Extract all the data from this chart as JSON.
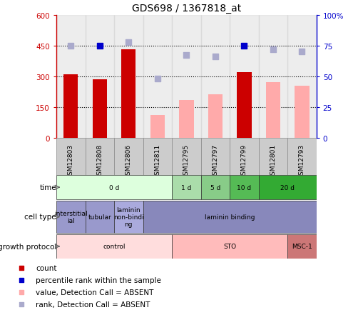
{
  "title": "GDS698 / 1367818_at",
  "samples": [
    "GSM12803",
    "GSM12808",
    "GSM12806",
    "GSM12811",
    "GSM12795",
    "GSM12797",
    "GSM12799",
    "GSM12801",
    "GSM12793"
  ],
  "count_values": [
    310,
    285,
    430,
    null,
    null,
    null,
    320,
    null,
    null
  ],
  "count_absent_values": [
    null,
    null,
    null,
    110,
    185,
    210,
    null,
    270,
    255
  ],
  "percentile_present": [
    null,
    75,
    null,
    null,
    null,
    null,
    75,
    null,
    null
  ],
  "percentile_absent": [
    75,
    null,
    78,
    48,
    67,
    66,
    null,
    72,
    70
  ],
  "ylim_left": [
    0,
    600
  ],
  "ylim_right": [
    0,
    100
  ],
  "yticks_left": [
    0,
    150,
    300,
    450,
    600
  ],
  "yticks_right": [
    0,
    25,
    50,
    75,
    100
  ],
  "ytick_labels_left": [
    "0",
    "150",
    "300",
    "450",
    "600"
  ],
  "ytick_labels_right": [
    "0",
    "25",
    "50",
    "75",
    "100%"
  ],
  "color_count": "#cc0000",
  "color_count_absent": "#ffaaaa",
  "color_percentile_present": "#0000cc",
  "color_percentile_absent": "#aaaacc",
  "bar_width": 0.5,
  "dot_size": 30,
  "time_groups": [
    {
      "label": "0 d",
      "start": 0,
      "end": 4,
      "color": "#ddffdd"
    },
    {
      "label": "1 d",
      "start": 4,
      "end": 5,
      "color": "#aaddaa"
    },
    {
      "label": "5 d",
      "start": 5,
      "end": 6,
      "color": "#88cc88"
    },
    {
      "label": "10 d",
      "start": 6,
      "end": 7,
      "color": "#55bb55"
    },
    {
      "label": "20 d",
      "start": 7,
      "end": 9,
      "color": "#33aa33"
    }
  ],
  "cell_type_groups": [
    {
      "label": "interstitial\nial",
      "start": 0,
      "end": 1,
      "color": "#9999cc"
    },
    {
      "label": "tubular",
      "start": 1,
      "end": 2,
      "color": "#9999cc"
    },
    {
      "label": "laminin\nnon-bindi\nng",
      "start": 2,
      "end": 3,
      "color": "#aaaadd"
    },
    {
      "label": "laminin binding",
      "start": 3,
      "end": 9,
      "color": "#8888bb"
    }
  ],
  "growth_protocol_groups": [
    {
      "label": "control",
      "start": 0,
      "end": 4,
      "color": "#ffdddd"
    },
    {
      "label": "STO",
      "start": 4,
      "end": 8,
      "color": "#ffbbbb"
    },
    {
      "label": "MSC-1",
      "start": 8,
      "end": 9,
      "color": "#cc7777"
    }
  ],
  "row_labels": [
    "time",
    "cell type",
    "growth protocol"
  ],
  "legend_items": [
    {
      "label": "count",
      "color": "#cc0000"
    },
    {
      "label": "percentile rank within the sample",
      "color": "#0000cc"
    },
    {
      "label": "value, Detection Call = ABSENT",
      "color": "#ffaaaa"
    },
    {
      "label": "rank, Detection Call = ABSENT",
      "color": "#aaaacc"
    }
  ]
}
